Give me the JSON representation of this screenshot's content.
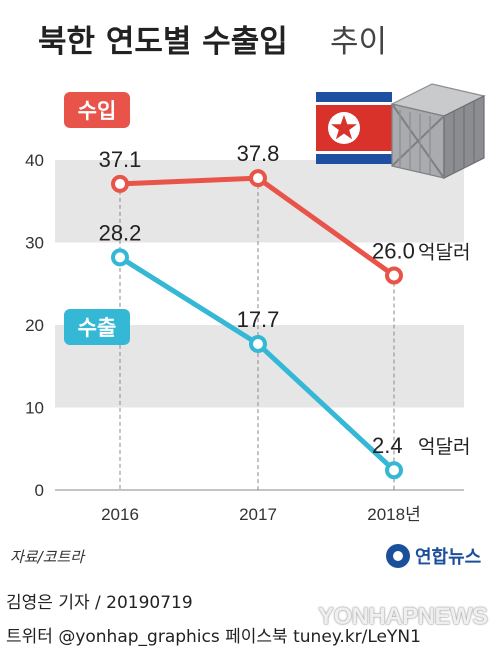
{
  "header": {
    "title_main": "북한 연도별 수출입",
    "title_sub": "추이"
  },
  "chart_data": {
    "type": "line",
    "title": "북한 연도별 수출입 추이",
    "categories": [
      "2016",
      "2017",
      "2018년"
    ],
    "yticks": [
      "0",
      "10",
      "20",
      "30",
      "40"
    ],
    "ylim": [
      0,
      40
    ],
    "series": [
      {
        "name": "수입",
        "values": [
          37.1,
          37.8,
          26.0
        ],
        "labels": [
          "37.1",
          "37.8",
          "26.0"
        ],
        "color": "#e8544a"
      },
      {
        "name": "수출",
        "values": [
          28.2,
          17.7,
          2.4
        ],
        "labels": [
          "28.2",
          "17.7",
          "2.4"
        ],
        "color": "#35b7d6"
      }
    ],
    "unit": "억달러",
    "grid_bands": true
  },
  "source": "자료/코트라",
  "brand": "연합뉴스",
  "footer": {
    "line1": "김영은 기자 / 20190719",
    "line2": "트위터 @yonhap_graphics  페이스북 tuney.kr/LeYN1"
  },
  "watermark": "YONHAPNEWS",
  "colors": {
    "import": "#e8544a",
    "export": "#35b7d6",
    "band": "#e6e6e6",
    "flag_blue": "#1f4fa0",
    "flag_red": "#d8322b"
  }
}
